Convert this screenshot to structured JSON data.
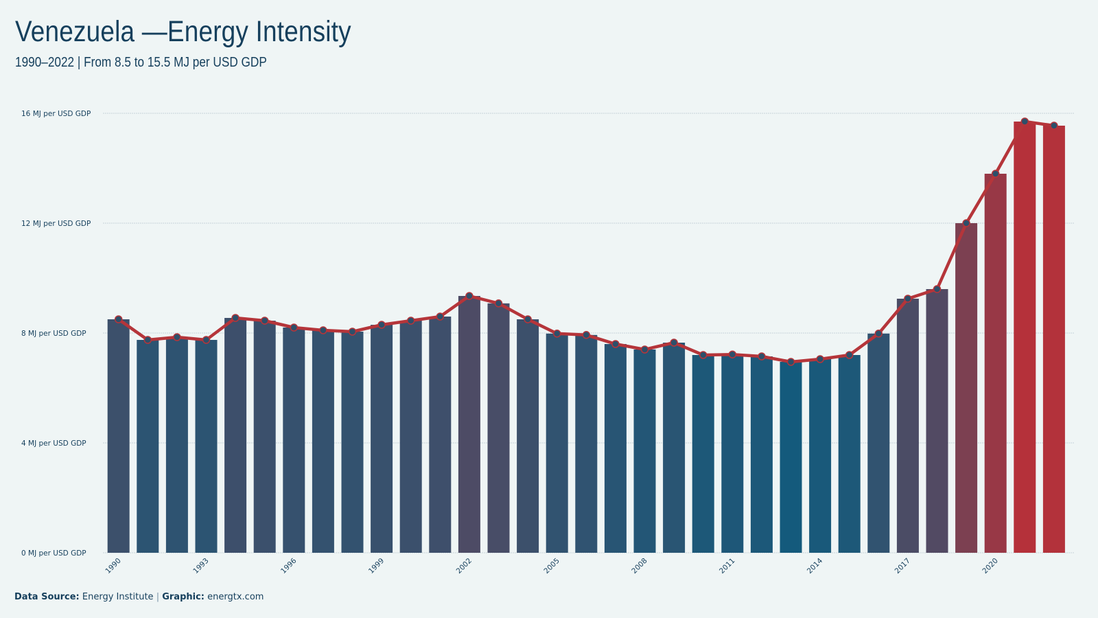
{
  "header": {
    "title": "Venezuela —Energy Intensity",
    "subtitle": "1990–2022 | From 8.5 to 15.5 MJ per USD GDP"
  },
  "footer": {
    "source_label": "Data Source:",
    "source_value": "Energy Institute",
    "separator": "|",
    "graphic_label": "Graphic:",
    "graphic_value": "energtx.com"
  },
  "colors": {
    "background": "#eff5f5",
    "line": "#b5353a",
    "low_bar": "#145a7c",
    "high_bar": "#b5313a",
    "text": "#153f5c",
    "grid": "#c7d3d9"
  },
  "chart_data": {
    "type": "bar",
    "title": "Venezuela —Energy Intensity",
    "subtitle": "1990–2022 | From 8.5 to 15.5 MJ per USD GDP",
    "unit_suffix": " MJ per USD GDP",
    "ylim": [
      0,
      16
    ],
    "yticks": [
      0,
      4,
      8,
      12,
      16
    ],
    "xtick_labels": [
      "1990",
      "1993",
      "1996",
      "1999",
      "2002",
      "2005",
      "2008",
      "2011",
      "2014",
      "2017",
      "2020"
    ],
    "grid": true,
    "categories": [
      "1990",
      "1991",
      "1992",
      "1993",
      "1994",
      "1995",
      "1996",
      "1997",
      "1998",
      "1999",
      "2000",
      "2001",
      "2002",
      "2003",
      "2004",
      "2005",
      "2006",
      "2007",
      "2008",
      "2009",
      "2010",
      "2011",
      "2012",
      "2013",
      "2014",
      "2015",
      "2016",
      "2017",
      "2018",
      "2019",
      "2020",
      "2021",
      "2022"
    ],
    "series": [
      {
        "values": [
          8.5,
          7.75,
          7.85,
          7.75,
          8.55,
          8.45,
          8.2,
          8.1,
          8.05,
          8.3,
          8.45,
          8.6,
          9.35,
          9.08,
          8.5,
          7.98,
          7.93,
          7.6,
          7.4,
          7.65,
          7.2,
          7.22,
          7.15,
          6.95,
          7.05,
          7.2,
          7.98,
          9.25,
          9.6,
          12.0,
          13.8,
          15.7,
          15.55
        ]
      }
    ]
  }
}
